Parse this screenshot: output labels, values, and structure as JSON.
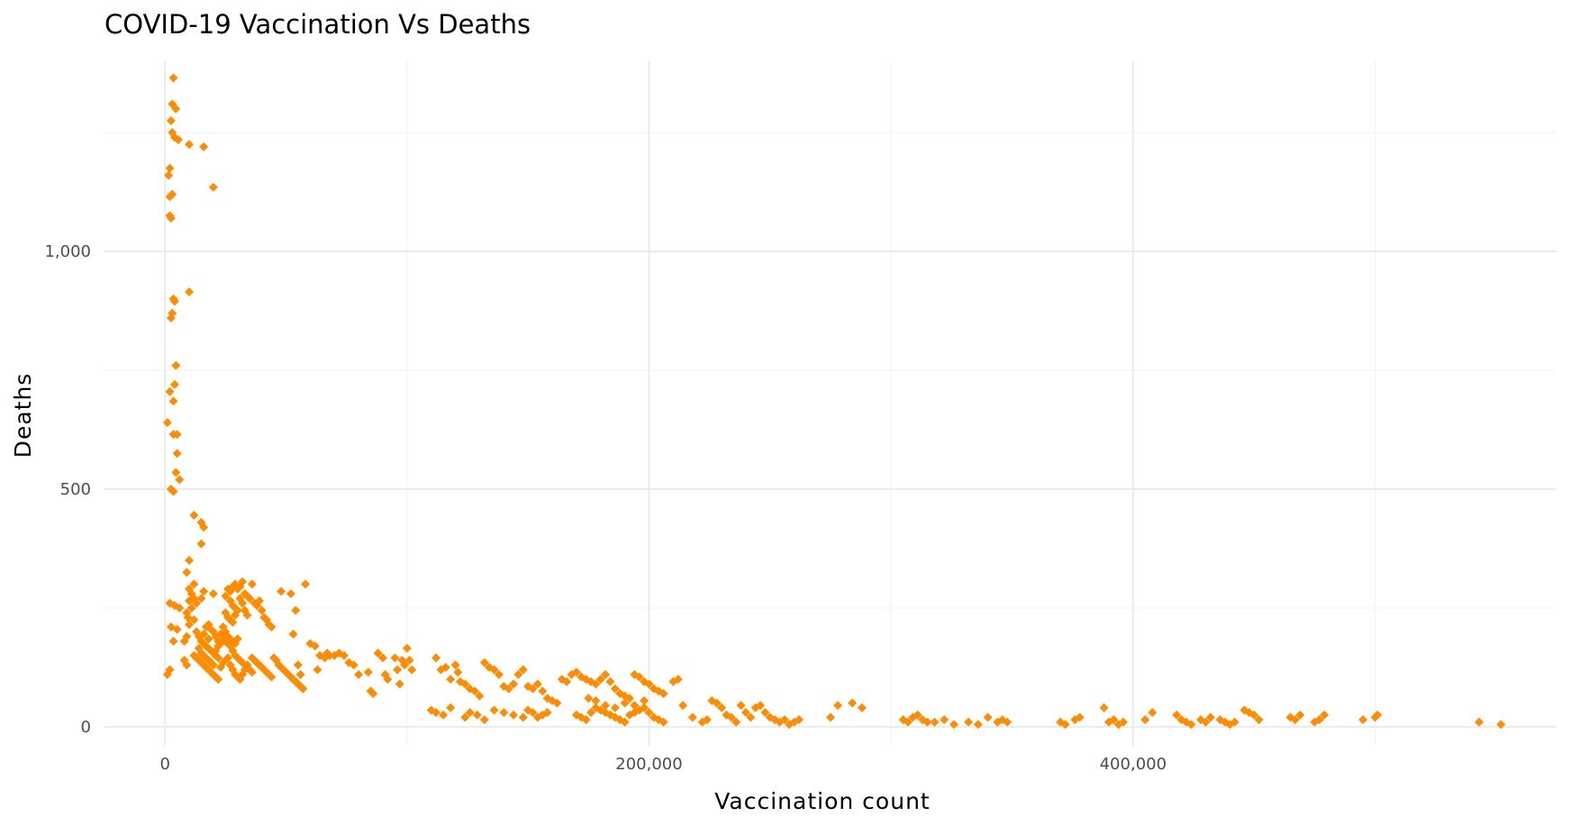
{
  "chart_data": {
    "type": "scatter",
    "title": "COVID-19 Vaccination Vs Deaths",
    "xlabel": "Vaccination count",
    "ylabel": "Deaths",
    "xlim": [
      -25000,
      575000
    ],
    "ylim": [
      -40,
      1400
    ],
    "x_ticks": [
      0,
      200000,
      400000
    ],
    "x_tick_labels": [
      "0",
      "200,000",
      "400,000"
    ],
    "y_ticks": [
      0,
      500,
      1000
    ],
    "y_tick_labels": [
      "0",
      "500",
      "1,000"
    ],
    "grid": true,
    "marker": "diamond",
    "point_color": "#ff8c00",
    "points": [
      [
        3500,
        1365
      ],
      [
        3000,
        1310
      ],
      [
        4500,
        1300
      ],
      [
        2500,
        1275
      ],
      [
        3000,
        1250
      ],
      [
        4000,
        1240
      ],
      [
        5500,
        1235
      ],
      [
        10000,
        1225
      ],
      [
        16000,
        1220
      ],
      [
        2000,
        1175
      ],
      [
        1500,
        1160
      ],
      [
        3000,
        1120
      ],
      [
        2000,
        1115
      ],
      [
        20000,
        1135
      ],
      [
        2000,
        1075
      ],
      [
        2500,
        1070
      ],
      [
        10000,
        915
      ],
      [
        3500,
        900
      ],
      [
        4000,
        895
      ],
      [
        3000,
        870
      ],
      [
        2500,
        860
      ],
      [
        4500,
        760
      ],
      [
        4000,
        720
      ],
      [
        2000,
        705
      ],
      [
        3500,
        685
      ],
      [
        1000,
        640
      ],
      [
        3500,
        615
      ],
      [
        5000,
        615
      ],
      [
        5000,
        575
      ],
      [
        4500,
        535
      ],
      [
        6000,
        520
      ],
      [
        2500,
        500
      ],
      [
        3500,
        495
      ],
      [
        12000,
        445
      ],
      [
        15000,
        430
      ],
      [
        16000,
        420
      ],
      [
        15000,
        385
      ],
      [
        10000,
        350
      ],
      [
        9000,
        325
      ],
      [
        12000,
        300
      ],
      [
        10000,
        290
      ],
      [
        11000,
        280
      ],
      [
        12000,
        270
      ],
      [
        10000,
        265
      ],
      [
        13000,
        260
      ],
      [
        11000,
        250
      ],
      [
        9000,
        240
      ],
      [
        9500,
        230
      ],
      [
        12000,
        225
      ],
      [
        10000,
        215
      ],
      [
        2000,
        260
      ],
      [
        4000,
        255
      ],
      [
        6000,
        250
      ],
      [
        2500,
        210
      ],
      [
        5000,
        205
      ],
      [
        3500,
        180
      ],
      [
        9000,
        190
      ],
      [
        8000,
        180
      ],
      [
        2000,
        120
      ],
      [
        1000,
        110
      ],
      [
        8000,
        140
      ],
      [
        9000,
        130
      ],
      [
        13000,
        200
      ],
      [
        14000,
        190
      ],
      [
        15000,
        180
      ],
      [
        16000,
        175
      ],
      [
        17000,
        170
      ],
      [
        18000,
        165
      ],
      [
        19000,
        160
      ],
      [
        20000,
        155
      ],
      [
        21000,
        150
      ],
      [
        22000,
        145
      ],
      [
        14000,
        165
      ],
      [
        15000,
        155
      ],
      [
        16000,
        150
      ],
      [
        17000,
        145
      ],
      [
        18000,
        140
      ],
      [
        19000,
        135
      ],
      [
        20000,
        130
      ],
      [
        21000,
        160
      ],
      [
        22000,
        170
      ],
      [
        23000,
        175
      ],
      [
        24000,
        185
      ],
      [
        25000,
        180
      ],
      [
        26000,
        175
      ],
      [
        27000,
        170
      ],
      [
        28000,
        160
      ],
      [
        29000,
        150
      ],
      [
        30000,
        145
      ],
      [
        31000,
        140
      ],
      [
        32000,
        135
      ],
      [
        33000,
        130
      ],
      [
        34000,
        125
      ],
      [
        35000,
        120
      ],
      [
        36000,
        115
      ],
      [
        12000,
        150
      ],
      [
        13000,
        145
      ],
      [
        14000,
        140
      ],
      [
        15000,
        135
      ],
      [
        16000,
        130
      ],
      [
        17000,
        125
      ],
      [
        18000,
        120
      ],
      [
        19000,
        115
      ],
      [
        20000,
        110
      ],
      [
        21000,
        105
      ],
      [
        22000,
        100
      ],
      [
        23000,
        125
      ],
      [
        24000,
        135
      ],
      [
        25000,
        140
      ],
      [
        26000,
        145
      ],
      [
        27000,
        130
      ],
      [
        28000,
        120
      ],
      [
        29000,
        110
      ],
      [
        30000,
        105
      ],
      [
        31000,
        100
      ],
      [
        32000,
        110
      ],
      [
        33000,
        120
      ],
      [
        34000,
        130
      ],
      [
        17000,
        210
      ],
      [
        18000,
        215
      ],
      [
        19000,
        205
      ],
      [
        20000,
        200
      ],
      [
        21000,
        190
      ],
      [
        23000,
        195
      ],
      [
        24000,
        210
      ],
      [
        16000,
        195
      ],
      [
        18000,
        185
      ],
      [
        22000,
        180
      ],
      [
        25000,
        200
      ],
      [
        26000,
        190
      ],
      [
        27000,
        185
      ],
      [
        28000,
        180
      ],
      [
        29000,
        175
      ],
      [
        30000,
        185
      ],
      [
        15000,
        270
      ],
      [
        16000,
        285
      ],
      [
        20000,
        280
      ],
      [
        25000,
        275
      ],
      [
        26000,
        290
      ],
      [
        27000,
        285
      ],
      [
        28000,
        295
      ],
      [
        29000,
        300
      ],
      [
        30000,
        290
      ],
      [
        31000,
        295
      ],
      [
        32000,
        305
      ],
      [
        33000,
        280
      ],
      [
        34000,
        275
      ],
      [
        35000,
        270
      ],
      [
        36000,
        300
      ],
      [
        37000,
        260
      ],
      [
        38000,
        255
      ],
      [
        39000,
        265
      ],
      [
        27000,
        265
      ],
      [
        28000,
        255
      ],
      [
        29000,
        250
      ],
      [
        30000,
        245
      ],
      [
        31000,
        270
      ],
      [
        32000,
        260
      ],
      [
        25000,
        240
      ],
      [
        26000,
        230
      ],
      [
        27000,
        225
      ],
      [
        28000,
        220
      ],
      [
        29000,
        235
      ],
      [
        33000,
        245
      ],
      [
        34000,
        235
      ],
      [
        40000,
        245
      ],
      [
        41000,
        230
      ],
      [
        42000,
        225
      ],
      [
        43000,
        215
      ],
      [
        44000,
        210
      ],
      [
        36000,
        145
      ],
      [
        37000,
        140
      ],
      [
        38000,
        135
      ],
      [
        39000,
        130
      ],
      [
        40000,
        125
      ],
      [
        41000,
        120
      ],
      [
        42000,
        115
      ],
      [
        43000,
        110
      ],
      [
        44000,
        105
      ],
      [
        45000,
        145
      ],
      [
        46000,
        140
      ],
      [
        47000,
        130
      ],
      [
        48000,
        125
      ],
      [
        49000,
        120
      ],
      [
        50000,
        115
      ],
      [
        51000,
        110
      ],
      [
        52000,
        105
      ],
      [
        53000,
        100
      ],
      [
        54000,
        95
      ],
      [
        55000,
        90
      ],
      [
        56000,
        85
      ],
      [
        57000,
        80
      ],
      [
        48000,
        285
      ],
      [
        52000,
        280
      ],
      [
        54000,
        245
      ],
      [
        53000,
        195
      ],
      [
        58000,
        300
      ],
      [
        60000,
        175
      ],
      [
        62000,
        170
      ],
      [
        64000,
        150
      ],
      [
        66000,
        145
      ],
      [
        67000,
        155
      ],
      [
        68000,
        150
      ],
      [
        70000,
        150
      ],
      [
        72000,
        155
      ],
      [
        74000,
        150
      ],
      [
        76000,
        135
      ],
      [
        78000,
        130
      ],
      [
        63000,
        120
      ],
      [
        55000,
        130
      ],
      [
        56000,
        110
      ],
      [
        80000,
        110
      ],
      [
        84000,
        115
      ],
      [
        85000,
        75
      ],
      [
        86000,
        70
      ],
      [
        88000,
        155
      ],
      [
        90000,
        145
      ],
      [
        91000,
        110
      ],
      [
        92000,
        100
      ],
      [
        95000,
        145
      ],
      [
        96000,
        120
      ],
      [
        97000,
        90
      ],
      [
        98000,
        140
      ],
      [
        99000,
        130
      ],
      [
        100000,
        165
      ],
      [
        101000,
        140
      ],
      [
        102000,
        120
      ],
      [
        112000,
        145
      ],
      [
        114000,
        120
      ],
      [
        116000,
        125
      ],
      [
        118000,
        100
      ],
      [
        120000,
        130
      ],
      [
        121000,
        115
      ],
      [
        122000,
        95
      ],
      [
        124000,
        90
      ],
      [
        126000,
        80
      ],
      [
        128000,
        75
      ],
      [
        130000,
        65
      ],
      [
        132000,
        135
      ],
      [
        134000,
        125
      ],
      [
        136000,
        120
      ],
      [
        138000,
        110
      ],
      [
        140000,
        85
      ],
      [
        142000,
        80
      ],
      [
        144000,
        90
      ],
      [
        146000,
        110
      ],
      [
        148000,
        120
      ],
      [
        110000,
        35
      ],
      [
        112000,
        30
      ],
      [
        115000,
        25
      ],
      [
        118000,
        40
      ],
      [
        124000,
        20
      ],
      [
        126000,
        30
      ],
      [
        129000,
        25
      ],
      [
        132000,
        15
      ],
      [
        136000,
        35
      ],
      [
        140000,
        30
      ],
      [
        144000,
        25
      ],
      [
        148000,
        20
      ],
      [
        150000,
        35
      ],
      [
        152000,
        30
      ],
      [
        154000,
        20
      ],
      [
        156000,
        25
      ],
      [
        158000,
        30
      ],
      [
        150000,
        85
      ],
      [
        152000,
        80
      ],
      [
        154000,
        90
      ],
      [
        156000,
        75
      ],
      [
        158000,
        60
      ],
      [
        160000,
        55
      ],
      [
        162000,
        50
      ],
      [
        164000,
        100
      ],
      [
        166000,
        95
      ],
      [
        168000,
        110
      ],
      [
        170000,
        115
      ],
      [
        172000,
        105
      ],
      [
        174000,
        100
      ],
      [
        176000,
        95
      ],
      [
        178000,
        90
      ],
      [
        180000,
        100
      ],
      [
        182000,
        110
      ],
      [
        184000,
        95
      ],
      [
        186000,
        80
      ],
      [
        188000,
        70
      ],
      [
        190000,
        65
      ],
      [
        192000,
        60
      ],
      [
        194000,
        110
      ],
      [
        196000,
        105
      ],
      [
        198000,
        95
      ],
      [
        200000,
        90
      ],
      [
        202000,
        80
      ],
      [
        204000,
        75
      ],
      [
        206000,
        70
      ],
      [
        170000,
        25
      ],
      [
        172000,
        20
      ],
      [
        174000,
        15
      ],
      [
        176000,
        30
      ],
      [
        178000,
        40
      ],
      [
        180000,
        35
      ],
      [
        182000,
        30
      ],
      [
        184000,
        25
      ],
      [
        186000,
        20
      ],
      [
        188000,
        15
      ],
      [
        190000,
        10
      ],
      [
        192000,
        25
      ],
      [
        194000,
        30
      ],
      [
        196000,
        35
      ],
      [
        198000,
        40
      ],
      [
        200000,
        30
      ],
      [
        202000,
        20
      ],
      [
        204000,
        15
      ],
      [
        206000,
        10
      ],
      [
        175000,
        60
      ],
      [
        178000,
        55
      ],
      [
        182000,
        45
      ],
      [
        186000,
        40
      ],
      [
        190000,
        50
      ],
      [
        194000,
        45
      ],
      [
        198000,
        55
      ],
      [
        210000,
        95
      ],
      [
        212000,
        100
      ],
      [
        214000,
        45
      ],
      [
        218000,
        20
      ],
      [
        222000,
        10
      ],
      [
        224000,
        15
      ],
      [
        226000,
        55
      ],
      [
        228000,
        50
      ],
      [
        230000,
        40
      ],
      [
        232000,
        25
      ],
      [
        234000,
        20
      ],
      [
        236000,
        10
      ],
      [
        238000,
        45
      ],
      [
        240000,
        30
      ],
      [
        242000,
        20
      ],
      [
        244000,
        40
      ],
      [
        246000,
        45
      ],
      [
        248000,
        30
      ],
      [
        250000,
        20
      ],
      [
        252000,
        15
      ],
      [
        254000,
        10
      ],
      [
        256000,
        15
      ],
      [
        258000,
        5
      ],
      [
        260000,
        10
      ],
      [
        262000,
        15
      ],
      [
        275000,
        20
      ],
      [
        278000,
        45
      ],
      [
        284000,
        50
      ],
      [
        288000,
        40
      ],
      [
        305000,
        15
      ],
      [
        307000,
        10
      ],
      [
        309000,
        20
      ],
      [
        311000,
        25
      ],
      [
        313000,
        15
      ],
      [
        315000,
        10
      ],
      [
        318000,
        10
      ],
      [
        322000,
        15
      ],
      [
        326000,
        5
      ],
      [
        332000,
        10
      ],
      [
        336000,
        5
      ],
      [
        340000,
        20
      ],
      [
        344000,
        10
      ],
      [
        346000,
        15
      ],
      [
        348000,
        10
      ],
      [
        370000,
        10
      ],
      [
        372000,
        5
      ],
      [
        376000,
        15
      ],
      [
        378000,
        20
      ],
      [
        388000,
        40
      ],
      [
        390000,
        10
      ],
      [
        392000,
        15
      ],
      [
        394000,
        5
      ],
      [
        396000,
        10
      ],
      [
        405000,
        15
      ],
      [
        408000,
        30
      ],
      [
        418000,
        25
      ],
      [
        420000,
        15
      ],
      [
        422000,
        10
      ],
      [
        424000,
        5
      ],
      [
        428000,
        15
      ],
      [
        430000,
        10
      ],
      [
        432000,
        20
      ],
      [
        436000,
        15
      ],
      [
        438000,
        10
      ],
      [
        440000,
        5
      ],
      [
        442000,
        10
      ],
      [
        446000,
        35
      ],
      [
        448000,
        30
      ],
      [
        450000,
        25
      ],
      [
        452000,
        15
      ],
      [
        465000,
        20
      ],
      [
        467000,
        15
      ],
      [
        469000,
        25
      ],
      [
        475000,
        10
      ],
      [
        477000,
        15
      ],
      [
        479000,
        25
      ],
      [
        495000,
        15
      ],
      [
        500000,
        20
      ],
      [
        501000,
        25
      ],
      [
        543000,
        10
      ],
      [
        552000,
        5
      ]
    ]
  }
}
